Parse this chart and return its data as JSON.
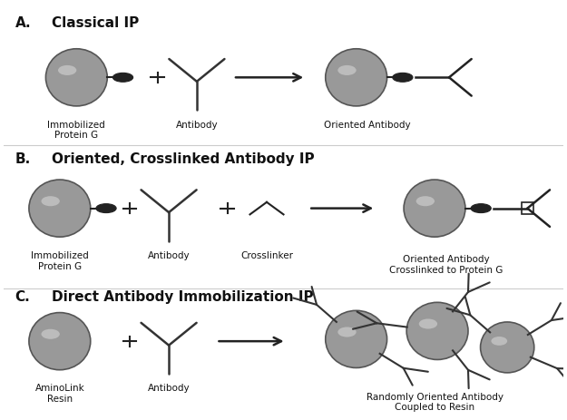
{
  "background_color": "#ffffff",
  "panel_labels": [
    "A.",
    "B.",
    "C."
  ],
  "panel_titles": [
    "Classical IP",
    "Oriented, Crosslinked Antibody IP",
    "Direct Antibody Immobilization IP"
  ],
  "section_A": {
    "labels": [
      "Immobilized\nProtein G",
      "Antibody",
      "Oriented Antibody"
    ]
  },
  "section_B": {
    "labels": [
      "Immobilized\nProtein G",
      "Antibody",
      "Crosslinker",
      "Oriented Antibody\nCrosslinked to Protein G"
    ]
  },
  "section_C": {
    "labels": [
      "AminoLink\nResin",
      "Antibody",
      "Randomly Oriented Antibody\nCoupled to Resin"
    ]
  },
  "bead_color": "#999999",
  "bead_edge_color": "#555555",
  "dark_color": "#222222",
  "text_color": "#111111"
}
